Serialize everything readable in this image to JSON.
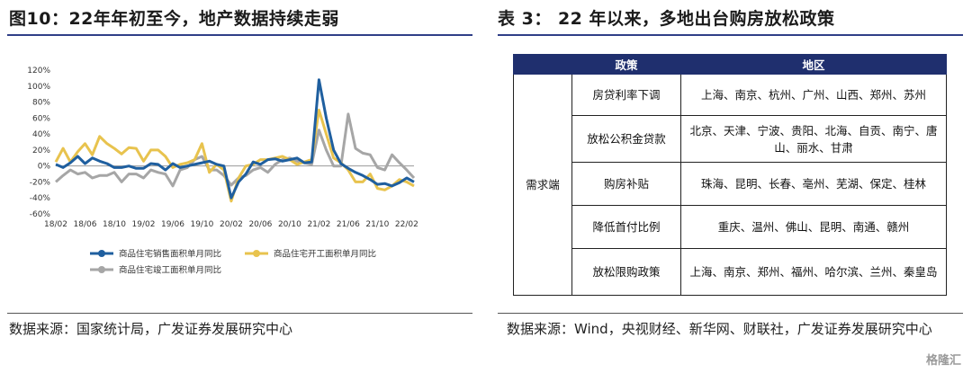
{
  "left": {
    "title": "图10：22年年初至今，地产数据持续走弱",
    "source": "数据来源：国家统计局，广发证券发展研究中心"
  },
  "right": {
    "title": "表 3：  22 年以来，多地出台购房放松政策",
    "source": "数据来源：Wind，央视财经、新华网、财联社，广发证券发展研究中心",
    "table": {
      "headers": [
        "",
        "政策",
        "地区"
      ],
      "category": "需求端",
      "rows": [
        {
          "policy": "房贷利率下调",
          "regions": "上海、南京、杭州、广州、山西、郑州、苏州"
        },
        {
          "policy": "放松公积金贷款",
          "regions": "北京、天津、宁波、贵阳、北海、自贡、南宁、唐山、丽水、甘肃"
        },
        {
          "policy": "购房补贴",
          "regions": "珠海、昆明、长春、亳州、芜湖、保定、桂林"
        },
        {
          "policy": "降低首付比例",
          "regions": "重庆、温州、佛山、昆明、南通、赣州"
        },
        {
          "policy": "放松限购政策",
          "regions": "上海、南京、郑州、福州、哈尔滨、兰州、秦皇岛"
        }
      ]
    }
  },
  "watermark": "格隆汇",
  "chart_data": {
    "type": "line",
    "ylim": [
      -60,
      120
    ],
    "yticks": [
      "120%",
      "100%",
      "80%",
      "60%",
      "40%",
      "20%",
      "0%",
      "-20%",
      "-40%",
      "-60%"
    ],
    "xticks": [
      "18/02",
      "18/06",
      "18/10",
      "19/02",
      "19/06",
      "19/10",
      "20/02",
      "20/06",
      "20/10",
      "21/02",
      "21/06",
      "21/10",
      "22/02"
    ],
    "x": [
      "18/02",
      "18/03",
      "18/04",
      "18/05",
      "18/06",
      "18/07",
      "18/08",
      "18/09",
      "18/10",
      "18/11",
      "18/12",
      "19/01",
      "19/02",
      "19/03",
      "19/04",
      "19/05",
      "19/06",
      "19/07",
      "19/08",
      "19/09",
      "19/10",
      "19/11",
      "19/12",
      "20/01",
      "20/02",
      "20/03",
      "20/04",
      "20/05",
      "20/06",
      "20/07",
      "20/08",
      "20/09",
      "20/10",
      "20/11",
      "20/12",
      "21/01",
      "21/02",
      "21/03",
      "21/04",
      "21/05",
      "21/06",
      "21/07",
      "21/08",
      "21/09",
      "21/10",
      "21/11",
      "21/12",
      "22/01",
      "22/02",
      "22/03"
    ],
    "series": [
      {
        "name": "商品住宅销售面积单月同比",
        "color": "#1f5f9f",
        "values": [
          2,
          -2,
          4,
          12,
          3,
          10,
          6,
          3,
          -2,
          -2,
          0,
          -3,
          -3,
          3,
          2,
          -5,
          3,
          -2,
          0,
          2,
          4,
          6,
          2,
          0,
          -40,
          -20,
          -10,
          5,
          2,
          8,
          9,
          6,
          8,
          10,
          4,
          5,
          108,
          60,
          20,
          3,
          -3,
          -8,
          -12,
          -17,
          -23,
          -22,
          -25,
          -21,
          -15,
          -20
        ]
      },
      {
        "name": "商品住宅开工面积单月同比",
        "color": "#e8c34e",
        "values": [
          5,
          22,
          5,
          18,
          28,
          14,
          37,
          28,
          22,
          15,
          23,
          22,
          6,
          20,
          20,
          12,
          -2,
          2,
          4,
          8,
          28,
          -8,
          2,
          -5,
          -44,
          -15,
          0,
          2,
          8,
          8,
          10,
          12,
          8,
          2,
          5,
          8,
          70,
          40,
          10,
          4,
          -5,
          -20,
          -20,
          -10,
          -28,
          -30,
          -25,
          -17,
          -20,
          -25
        ]
      },
      {
        "name": "商品住宅竣工面积单月同比",
        "color": "#a6a6a6",
        "values": [
          -20,
          -12,
          -5,
          -10,
          -8,
          -15,
          -12,
          -12,
          -8,
          -20,
          -10,
          -10,
          -15,
          -5,
          -8,
          -10,
          -25,
          -5,
          -2,
          8,
          12,
          -5,
          -5,
          -12,
          -24,
          -15,
          -12,
          -5,
          -2,
          -8,
          2,
          8,
          10,
          6,
          4,
          2,
          45,
          20,
          0,
          0,
          65,
          22,
          16,
          14,
          -2,
          -5,
          14,
          4,
          -5,
          -15
        ]
      }
    ]
  }
}
